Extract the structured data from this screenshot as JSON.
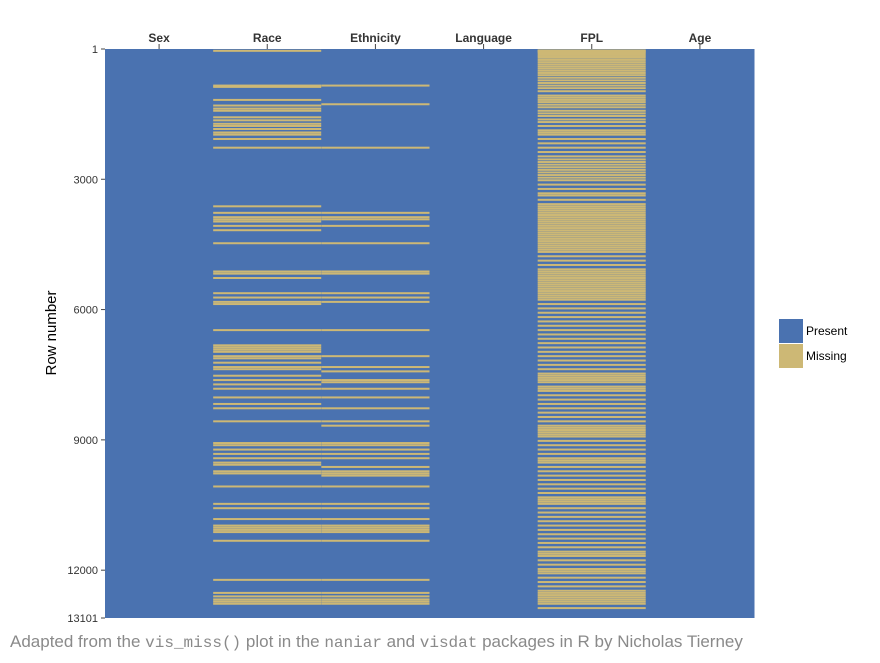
{
  "chart_data": {
    "type": "heatmap",
    "ylabel": "Row number",
    "columns": [
      "Sex",
      "Race",
      "Ethnicity",
      "Language",
      "FPL",
      "Age"
    ],
    "row_range": [
      1,
      13101
    ],
    "y_ticks": [
      "1",
      "3000",
      "6000",
      "9000",
      "12000",
      "13101"
    ],
    "y_tick_values": [
      1,
      3000,
      6000,
      9000,
      12000,
      13101
    ],
    "legend": [
      {
        "label": "Present",
        "color": "#4a72b0"
      },
      {
        "label": "Missing",
        "color": "#cdb875"
      }
    ],
    "legend_position": "right",
    "missing_rows": {
      "Sex": [],
      "Language": [],
      "Age": [],
      "Race": [
        20,
        820,
        850,
        1150,
        1280,
        1350,
        1400,
        1550,
        1620,
        1700,
        1750,
        1820,
        1900,
        1950,
        2050,
        2250,
        3600,
        3750,
        3850,
        3900,
        3950,
        4050,
        4150,
        4450,
        5100,
        5150,
        5250,
        5600,
        5700,
        5800,
        5850,
        6450,
        6800,
        6850,
        6900,
        6950,
        7050,
        7100,
        7200,
        7300,
        7350,
        7500,
        7600,
        7700,
        7800,
        8000,
        8150,
        8250,
        8550,
        9050,
        9100,
        9200,
        9300,
        9400,
        9500,
        9550,
        9700,
        9750,
        10050,
        10450,
        10550,
        10800,
        10950,
        11000,
        11050,
        11100,
        11300,
        12200,
        12500,
        12580,
        12650,
        12700,
        12750
      ],
      "Ethnicity": [
        820,
        1250,
        2250,
        3750,
        3850,
        3900,
        4050,
        4450,
        5100,
        5150,
        5600,
        5700,
        5800,
        6450,
        7050,
        7300,
        7400,
        7600,
        7650,
        7800,
        8000,
        8250,
        8550,
        8650,
        9050,
        9100,
        9200,
        9300,
        9400,
        9600,
        9700,
        9750,
        9800,
        10050,
        10450,
        10550,
        10800,
        10950,
        11000,
        11050,
        11100,
        11300,
        12200,
        12500,
        12580,
        12650,
        12700,
        12750
      ],
      "FPL": [
        10,
        20,
        40,
        60,
        100,
        140,
        180,
        230,
        280,
        330,
        380,
        430,
        480,
        530,
        580,
        640,
        700,
        760,
        820,
        880,
        950,
        1050,
        1100,
        1150,
        1200,
        1260,
        1320,
        1400,
        1460,
        1520,
        1600,
        1660,
        1750,
        1850,
        1900,
        1950,
        2050,
        2150,
        2250,
        2350,
        2450,
        2520,
        2580,
        2640,
        2700,
        2760,
        2820,
        2880,
        2940,
        3000,
        3100,
        3200,
        3300,
        3350,
        3450,
        3550,
        3600,
        3650,
        3700,
        3750,
        3800,
        3850,
        3900,
        3950,
        4000,
        4050,
        4100,
        4150,
        4200,
        4250,
        4300,
        4350,
        4400,
        4450,
        4500,
        4550,
        4600,
        4650,
        4750,
        4850,
        4950,
        5050,
        5100,
        5150,
        5200,
        5250,
        5300,
        5350,
        5400,
        5450,
        5500,
        5550,
        5600,
        5650,
        5700,
        5750,
        5850,
        5950,
        6050,
        6150,
        6250,
        6350,
        6450,
        6550,
        6650,
        6750,
        6850,
        6950,
        7050,
        7150,
        7250,
        7350,
        7450,
        7500,
        7550,
        7600,
        7650,
        7750,
        7800,
        7850,
        7950,
        8050,
        8150,
        8250,
        8350,
        8450,
        8550,
        8650,
        8700,
        8750,
        8800,
        8850,
        8900,
        9000,
        9100,
        9200,
        9300,
        9400,
        9450,
        9500,
        9600,
        9700,
        9800,
        9900,
        10000,
        10100,
        10200,
        10300,
        10350,
        10400,
        10450,
        10550,
        10650,
        10750,
        10850,
        10950,
        11050,
        11150,
        11250,
        11350,
        11450,
        11550,
        11600,
        11650,
        11750,
        11850,
        11950,
        12000,
        12050,
        12150,
        12250,
        12350,
        12450,
        12500,
        12550,
        12600,
        12650,
        12700,
        12750,
        12850
      ]
    }
  },
  "caption": {
    "part1": "Adapted from the ",
    "code1": "vis_miss()",
    "part2": " plot in the ",
    "code2": "naniar",
    "part3": " and ",
    "code3": "visdat",
    "part4": " packages in R by Nicholas Tierney"
  }
}
